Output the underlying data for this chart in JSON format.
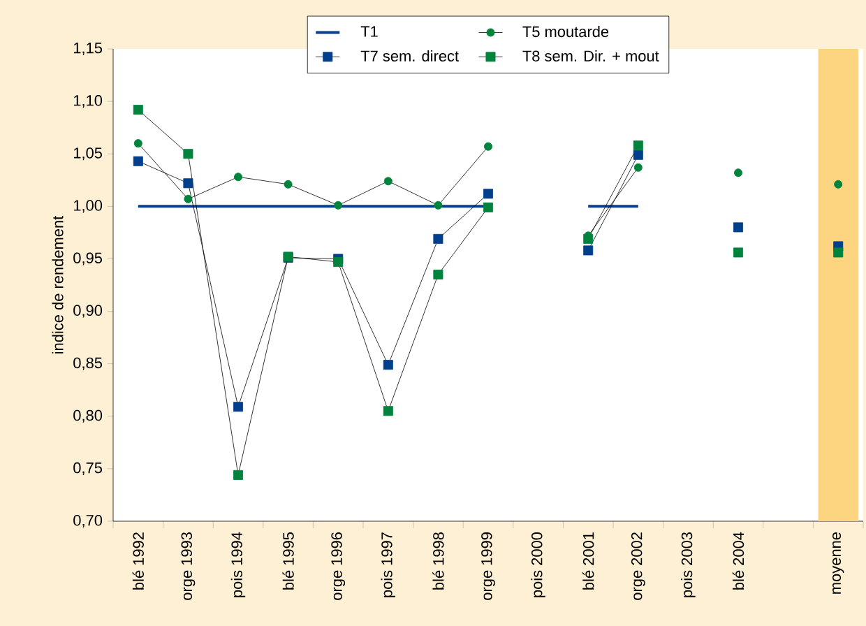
{
  "chart_data": {
    "type": "line",
    "ylabel": "indice de rendement",
    "categories": [
      "blé 1992",
      "orge 1993",
      "pois 1994",
      "blé 1995",
      "orge 1996",
      "pois 1997",
      "blé 1998",
      "orge 1999",
      "pois 2000",
      "blé 2001",
      "orge 2002",
      "pois 2003",
      "blé 2004",
      null,
      "moyenne"
    ],
    "series": [
      {
        "name": "T1",
        "color": "#0a3f8c",
        "marker": "none",
        "values": [
          1.0,
          1.0,
          1.0,
          1.0,
          1.0,
          1.0,
          1.0,
          1.0,
          null,
          1.0,
          1.0,
          null,
          null,
          null,
          null
        ]
      },
      {
        "name": "T5 moutarde",
        "color": "#00843d",
        "marker": "circle",
        "values": [
          1.06,
          1.007,
          1.028,
          1.021,
          1.001,
          1.024,
          1.001,
          1.057,
          null,
          0.972,
          1.037,
          null,
          1.032,
          null,
          1.021
        ]
      },
      {
        "name": "T7 sem. direct",
        "color": "#003f8c",
        "marker": "square",
        "values": [
          1.043,
          1.022,
          0.809,
          0.951,
          0.95,
          0.849,
          0.969,
          1.012,
          null,
          0.958,
          1.049,
          null,
          0.98,
          null,
          0.962
        ]
      },
      {
        "name": "T8 sem. Dir. + mout",
        "color": "#00843d",
        "marker": "square",
        "values": [
          1.092,
          1.05,
          0.744,
          0.952,
          0.947,
          0.805,
          0.935,
          0.999,
          null,
          0.969,
          1.058,
          null,
          0.956,
          null,
          0.956
        ]
      }
    ],
    "ylim": [
      0.7,
      1.15
    ],
    "yticks": [
      {
        "value": 0.7,
        "label": "0,70"
      },
      {
        "value": 0.75,
        "label": "0,75"
      },
      {
        "value": 0.8,
        "label": "0,80"
      },
      {
        "value": 0.85,
        "label": "0,85"
      },
      {
        "value": 0.9,
        "label": "0,90"
      },
      {
        "value": 0.95,
        "label": "0,95"
      },
      {
        "value": 1.0,
        "label": "1,00"
      },
      {
        "value": 1.05,
        "label": "1,05"
      },
      {
        "value": 1.1,
        "label": "1,10"
      },
      {
        "value": 1.15,
        "label": "1,15"
      }
    ],
    "bands": [
      {
        "axis": "x",
        "from": "moyenne",
        "to": "moyenne",
        "color": "#fdd581"
      }
    ],
    "grid": false,
    "legend": "top"
  }
}
